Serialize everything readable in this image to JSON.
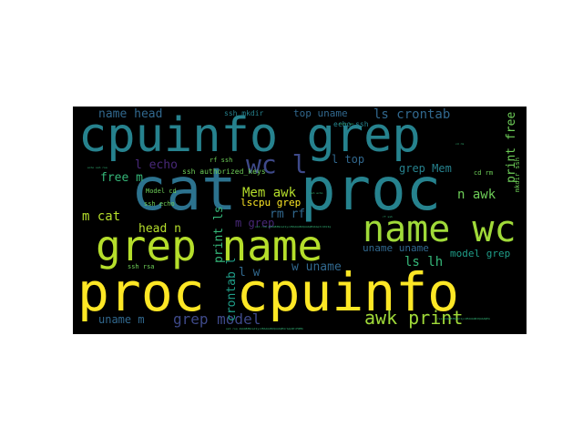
{
  "colors": {
    "background": "#ffffff",
    "canvas": "#000000",
    "yellow": "#fde725",
    "lime": "#b5de2b",
    "green": "#6ece58",
    "teal_green": "#35b779",
    "teal": "#1f9e89",
    "blue_teal": "#26828e",
    "blue": "#31688e",
    "indigo": "#3e4989",
    "purple": "#482878",
    "dark_purple": "#440154"
  },
  "words": {
    "w01": "cpuinfo grep",
    "w02": "cat",
    "w03": "proc",
    "w04": "grep name",
    "w05": "name wc",
    "w06": "proc cpuinfo",
    "w07": "wc l",
    "w08": "awk print",
    "w09": "grep model",
    "w10": "name head",
    "w11": "ls crontab",
    "w12": "top uname",
    "w13": "ssh mkdir",
    "w14": "echo ssh",
    "w15": "l echo",
    "w16": "l top",
    "w17": "grep Mem",
    "w18": "free m",
    "w19": "rf ssh",
    "w20": "ssh authorized_keys",
    "w21": "Mem awk",
    "w22": "n awk",
    "w23": "rm rf",
    "w24": "lscpu grep",
    "w25": "m cat",
    "w26": "m grep",
    "w27": "head n",
    "w28": "print ls",
    "w29": "crontab l",
    "w30": "l w",
    "w31": "w uname",
    "w32": "uname uname",
    "w33": "model grep",
    "w34": "ls lh",
    "w35": "uname m",
    "w36": "ssh rsa",
    "w37": "Model cd",
    "w38": "ssh echo",
    "w39": "cd rm",
    "w40": "print free",
    "w41": "mkdir ssh"
  },
  "tiny": {
    "t1": "ssh rsa AAAAB3NzaC1yc2EAAAABJQAAAQEArGqLNtcM4Mb",
    "t2": "ssh rsa AAAAB3NzaC1yc2EAAAABJQAAAQEAbGp7c4XzIq",
    "t3": "mkdir ssh",
    "t4": "ssh echo",
    "t5": "echo ssh rsa",
    "t6": "cd rm",
    "t7": "rf ssh",
    "t8": "rsa AAAAB3NzaC1yc2EAAAABJQAAAQEA"
  }
}
